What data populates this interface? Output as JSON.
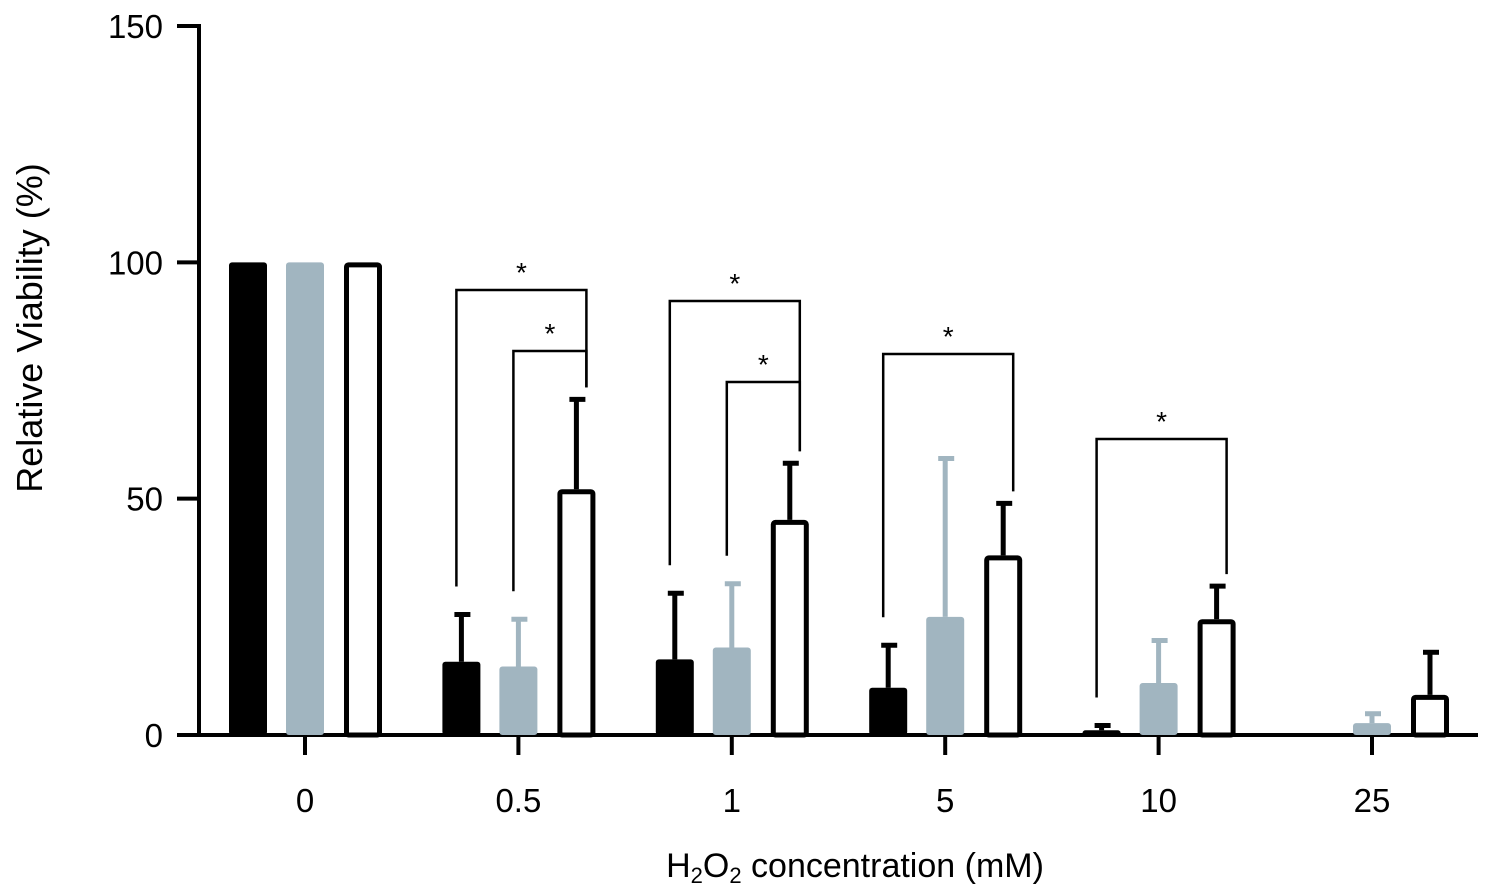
{
  "chart_data": {
    "type": "bar",
    "ylabel": "Relative Viability (%)",
    "xlabel": {
      "prefix": "H",
      "sub1": "2",
      "mid": "O",
      "sub2": "2",
      "suffix": " concentration (mM)"
    },
    "categories": [
      "0",
      "0.5",
      "1",
      "5",
      "10",
      "25"
    ],
    "ylim": [
      0,
      150
    ],
    "yticks": [
      0,
      50,
      100,
      150
    ],
    "grid": false,
    "series": [
      {
        "color": "#000000",
        "fill": "solid",
        "values": [
          100,
          15.5,
          16,
          10,
          1,
          null
        ],
        "errors": [
          0,
          10,
          14,
          9,
          1,
          null
        ]
      },
      {
        "color": "#a1b5c0",
        "fill": "solid",
        "values": [
          100,
          14.5,
          18.5,
          25,
          11,
          2.5
        ],
        "errors": [
          0,
          10,
          13.5,
          33.5,
          9,
          2
        ]
      },
      {
        "color": "#000000",
        "fill": "open",
        "values": [
          100,
          52,
          45.5,
          38,
          24.5,
          8.5
        ],
        "errors": [
          0,
          19,
          12,
          11,
          7,
          9
        ]
      }
    ],
    "significance": [
      {
        "category": "0.5",
        "from_series": 0,
        "to_series": 2,
        "label": "*"
      },
      {
        "category": "0.5",
        "from_series": 1,
        "to_series": 2,
        "label": "*"
      },
      {
        "category": "1",
        "from_series": 0,
        "to_series": 2,
        "label": "*"
      },
      {
        "category": "1",
        "from_series": 1,
        "to_series": 2,
        "label": "*"
      },
      {
        "category": "5",
        "from_series": 0,
        "to_series": 2,
        "label": "*"
      },
      {
        "category": "10",
        "from_series": 0,
        "to_series": 2,
        "label": "*"
      }
    ]
  }
}
